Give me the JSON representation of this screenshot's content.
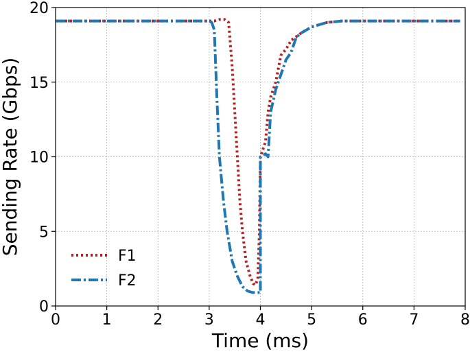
{
  "chart_data": {
    "type": "line",
    "title": "",
    "xlabel": "Time (ms)",
    "ylabel": "Sending Rate (Gbps)",
    "xlim": [
      0,
      8
    ],
    "ylim": [
      0,
      20
    ],
    "xticks": [
      0,
      1,
      2,
      3,
      4,
      5,
      6,
      7,
      8
    ],
    "yticks": [
      0,
      5,
      10,
      15,
      20
    ],
    "grid": true,
    "legend_position": "lower-left",
    "series": [
      {
        "name": "F1",
        "color": "#b22222",
        "style": "dotted",
        "points": [
          [
            0,
            19.1
          ],
          [
            0.5,
            19.1
          ],
          [
            1.0,
            19.1
          ],
          [
            1.5,
            19.1
          ],
          [
            2.0,
            19.1
          ],
          [
            2.5,
            19.1
          ],
          [
            3.0,
            19.1
          ],
          [
            3.1,
            19.1
          ],
          [
            3.2,
            19.2
          ],
          [
            3.3,
            19.2
          ],
          [
            3.38,
            19.0
          ],
          [
            3.45,
            16.0
          ],
          [
            3.5,
            13.0
          ],
          [
            3.55,
            10.0
          ],
          [
            3.6,
            7.0
          ],
          [
            3.65,
            5.0
          ],
          [
            3.72,
            3.0
          ],
          [
            3.8,
            2.0
          ],
          [
            3.86,
            1.5
          ],
          [
            3.9,
            1.4
          ],
          [
            3.95,
            1.8
          ],
          [
            3.98,
            5.0
          ],
          [
            4.0,
            10.0
          ],
          [
            4.05,
            10.5
          ],
          [
            4.1,
            11.0
          ],
          [
            4.15,
            13.0
          ],
          [
            4.2,
            14.0
          ],
          [
            4.3,
            15.0
          ],
          [
            4.4,
            16.8
          ],
          [
            4.5,
            17.2
          ],
          [
            4.6,
            17.8
          ],
          [
            4.8,
            18.3
          ],
          [
            5.0,
            18.7
          ],
          [
            5.3,
            19.0
          ],
          [
            5.6,
            19.1
          ],
          [
            6.0,
            19.1
          ],
          [
            6.5,
            19.1
          ],
          [
            7.0,
            19.1
          ],
          [
            7.5,
            19.1
          ],
          [
            7.9,
            19.1
          ]
        ]
      },
      {
        "name": "F2",
        "color": "#1f77b4",
        "style": "dashdot",
        "points": [
          [
            0,
            19.1
          ],
          [
            0.5,
            19.1
          ],
          [
            1.0,
            19.1
          ],
          [
            1.5,
            19.1
          ],
          [
            2.0,
            19.1
          ],
          [
            2.5,
            19.1
          ],
          [
            3.0,
            19.1
          ],
          [
            3.05,
            19.0
          ],
          [
            3.1,
            18.5
          ],
          [
            3.15,
            14.0
          ],
          [
            3.2,
            10.0
          ],
          [
            3.28,
            7.0
          ],
          [
            3.35,
            5.0
          ],
          [
            3.45,
            3.0
          ],
          [
            3.55,
            2.0
          ],
          [
            3.65,
            1.3
          ],
          [
            3.75,
            1.0
          ],
          [
            3.85,
            0.9
          ],
          [
            3.95,
            0.9
          ],
          [
            4.0,
            0.9
          ],
          [
            4.0,
            10.0
          ],
          [
            4.1,
            10.2
          ],
          [
            4.15,
            10.0
          ],
          [
            4.2,
            13.0
          ],
          [
            4.3,
            14.5
          ],
          [
            4.4,
            15.5
          ],
          [
            4.5,
            16.5
          ],
          [
            4.6,
            17.0
          ],
          [
            4.7,
            18.0
          ],
          [
            4.8,
            18.3
          ],
          [
            5.0,
            18.7
          ],
          [
            5.3,
            19.0
          ],
          [
            5.6,
            19.1
          ],
          [
            6.0,
            19.1
          ],
          [
            6.5,
            19.1
          ],
          [
            7.0,
            19.1
          ],
          [
            7.5,
            19.1
          ],
          [
            7.9,
            19.1
          ]
        ]
      }
    ]
  }
}
